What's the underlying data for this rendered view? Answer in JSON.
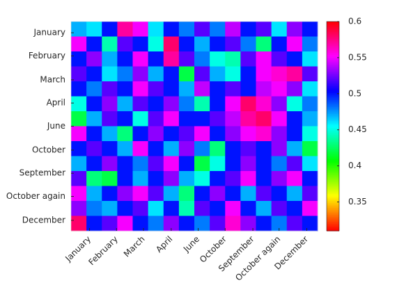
{
  "chart_data": {
    "type": "heatmap",
    "colormap": "hsv",
    "y_reversed": true,
    "xlim": [
      0,
      16
    ],
    "ylim": [
      0,
      14
    ],
    "xticks": [
      {
        "value": 1.2,
        "label": "January"
      },
      {
        "value": 2.95,
        "label": "February"
      },
      {
        "value": 4.7,
        "label": "March"
      },
      {
        "value": 6.5,
        "label": "April"
      },
      {
        "value": 8.25,
        "label": "June"
      },
      {
        "value": 10,
        "label": "October"
      },
      {
        "value": 11.8,
        "label": "September"
      },
      {
        "value": 13.5,
        "label": "October again"
      },
      {
        "value": 15.3,
        "label": "December"
      }
    ],
    "yticks": [
      {
        "value": 0.75,
        "label": "January"
      },
      {
        "value": 2.3,
        "label": "February"
      },
      {
        "value": 3.9,
        "label": "March"
      },
      {
        "value": 5.45,
        "label": "April"
      },
      {
        "value": 7.0,
        "label": "June"
      },
      {
        "value": 8.6,
        "label": "October"
      },
      {
        "value": 10.15,
        "label": "September"
      },
      {
        "value": 11.7,
        "label": "October again"
      },
      {
        "value": 13.3,
        "label": "December"
      }
    ],
    "clim": [
      0.31,
      0.6
    ],
    "cticks": [
      0.35,
      0.4,
      0.45,
      0.5,
      0.55,
      0.6
    ],
    "values": [
      [
        0.47,
        0.46,
        0.5,
        0.57,
        0.55,
        0.46,
        0.5,
        0.48,
        0.52,
        0.48,
        0.54,
        0.5,
        0.52,
        0.46,
        0.53,
        0.5
      ],
      [
        0.55,
        0.5,
        0.44,
        0.52,
        0.5,
        0.45,
        0.58,
        0.5,
        0.47,
        0.5,
        0.52,
        0.48,
        0.43,
        0.5,
        0.55,
        0.48
      ],
      [
        0.5,
        0.53,
        0.47,
        0.5,
        0.55,
        0.5,
        0.57,
        0.52,
        0.48,
        0.45,
        0.44,
        0.52,
        0.55,
        0.52,
        0.5,
        0.46
      ],
      [
        0.52,
        0.5,
        0.46,
        0.48,
        0.53,
        0.47,
        0.5,
        0.42,
        0.52,
        0.47,
        0.45,
        0.5,
        0.55,
        0.56,
        0.57,
        0.52
      ],
      [
        0.5,
        0.48,
        0.52,
        0.5,
        0.55,
        0.52,
        0.5,
        0.47,
        0.54,
        0.5,
        0.52,
        0.5,
        0.54,
        0.55,
        0.53,
        0.46
      ],
      [
        0.45,
        0.5,
        0.53,
        0.47,
        0.52,
        0.5,
        0.53,
        0.48,
        0.44,
        0.5,
        0.55,
        0.58,
        0.56,
        0.53,
        0.45,
        0.48
      ],
      [
        0.42,
        0.47,
        0.52,
        0.5,
        0.45,
        0.52,
        0.55,
        0.5,
        0.5,
        0.52,
        0.54,
        0.57,
        0.58,
        0.55,
        0.5,
        0.47
      ],
      [
        0.55,
        0.5,
        0.47,
        0.43,
        0.5,
        0.53,
        0.5,
        0.52,
        0.55,
        0.5,
        0.53,
        0.55,
        0.56,
        0.53,
        0.5,
        0.45
      ],
      [
        0.5,
        0.52,
        0.5,
        0.47,
        0.55,
        0.5,
        0.47,
        0.53,
        0.48,
        0.43,
        0.5,
        0.52,
        0.5,
        0.53,
        0.47,
        0.42
      ],
      [
        0.47,
        0.5,
        0.53,
        0.5,
        0.48,
        0.52,
        0.55,
        0.5,
        0.42,
        0.45,
        0.5,
        0.53,
        0.5,
        0.48,
        0.52,
        0.46
      ],
      [
        0.52,
        0.43,
        0.42,
        0.5,
        0.47,
        0.5,
        0.53,
        0.47,
        0.45,
        0.5,
        0.52,
        0.55,
        0.5,
        0.53,
        0.55,
        0.5
      ],
      [
        0.55,
        0.47,
        0.5,
        0.53,
        0.55,
        0.52,
        0.47,
        0.43,
        0.5,
        0.53,
        0.5,
        0.47,
        0.52,
        0.5,
        0.47,
        0.52
      ],
      [
        0.53,
        0.48,
        0.47,
        0.5,
        0.52,
        0.46,
        0.5,
        0.44,
        0.52,
        0.5,
        0.55,
        0.5,
        0.47,
        0.52,
        0.5,
        0.55
      ],
      [
        0.58,
        0.5,
        0.52,
        0.55,
        0.5,
        0.48,
        0.53,
        0.5,
        0.48,
        0.52,
        0.56,
        0.53,
        0.5,
        0.48,
        0.52,
        0.5
      ]
    ]
  }
}
